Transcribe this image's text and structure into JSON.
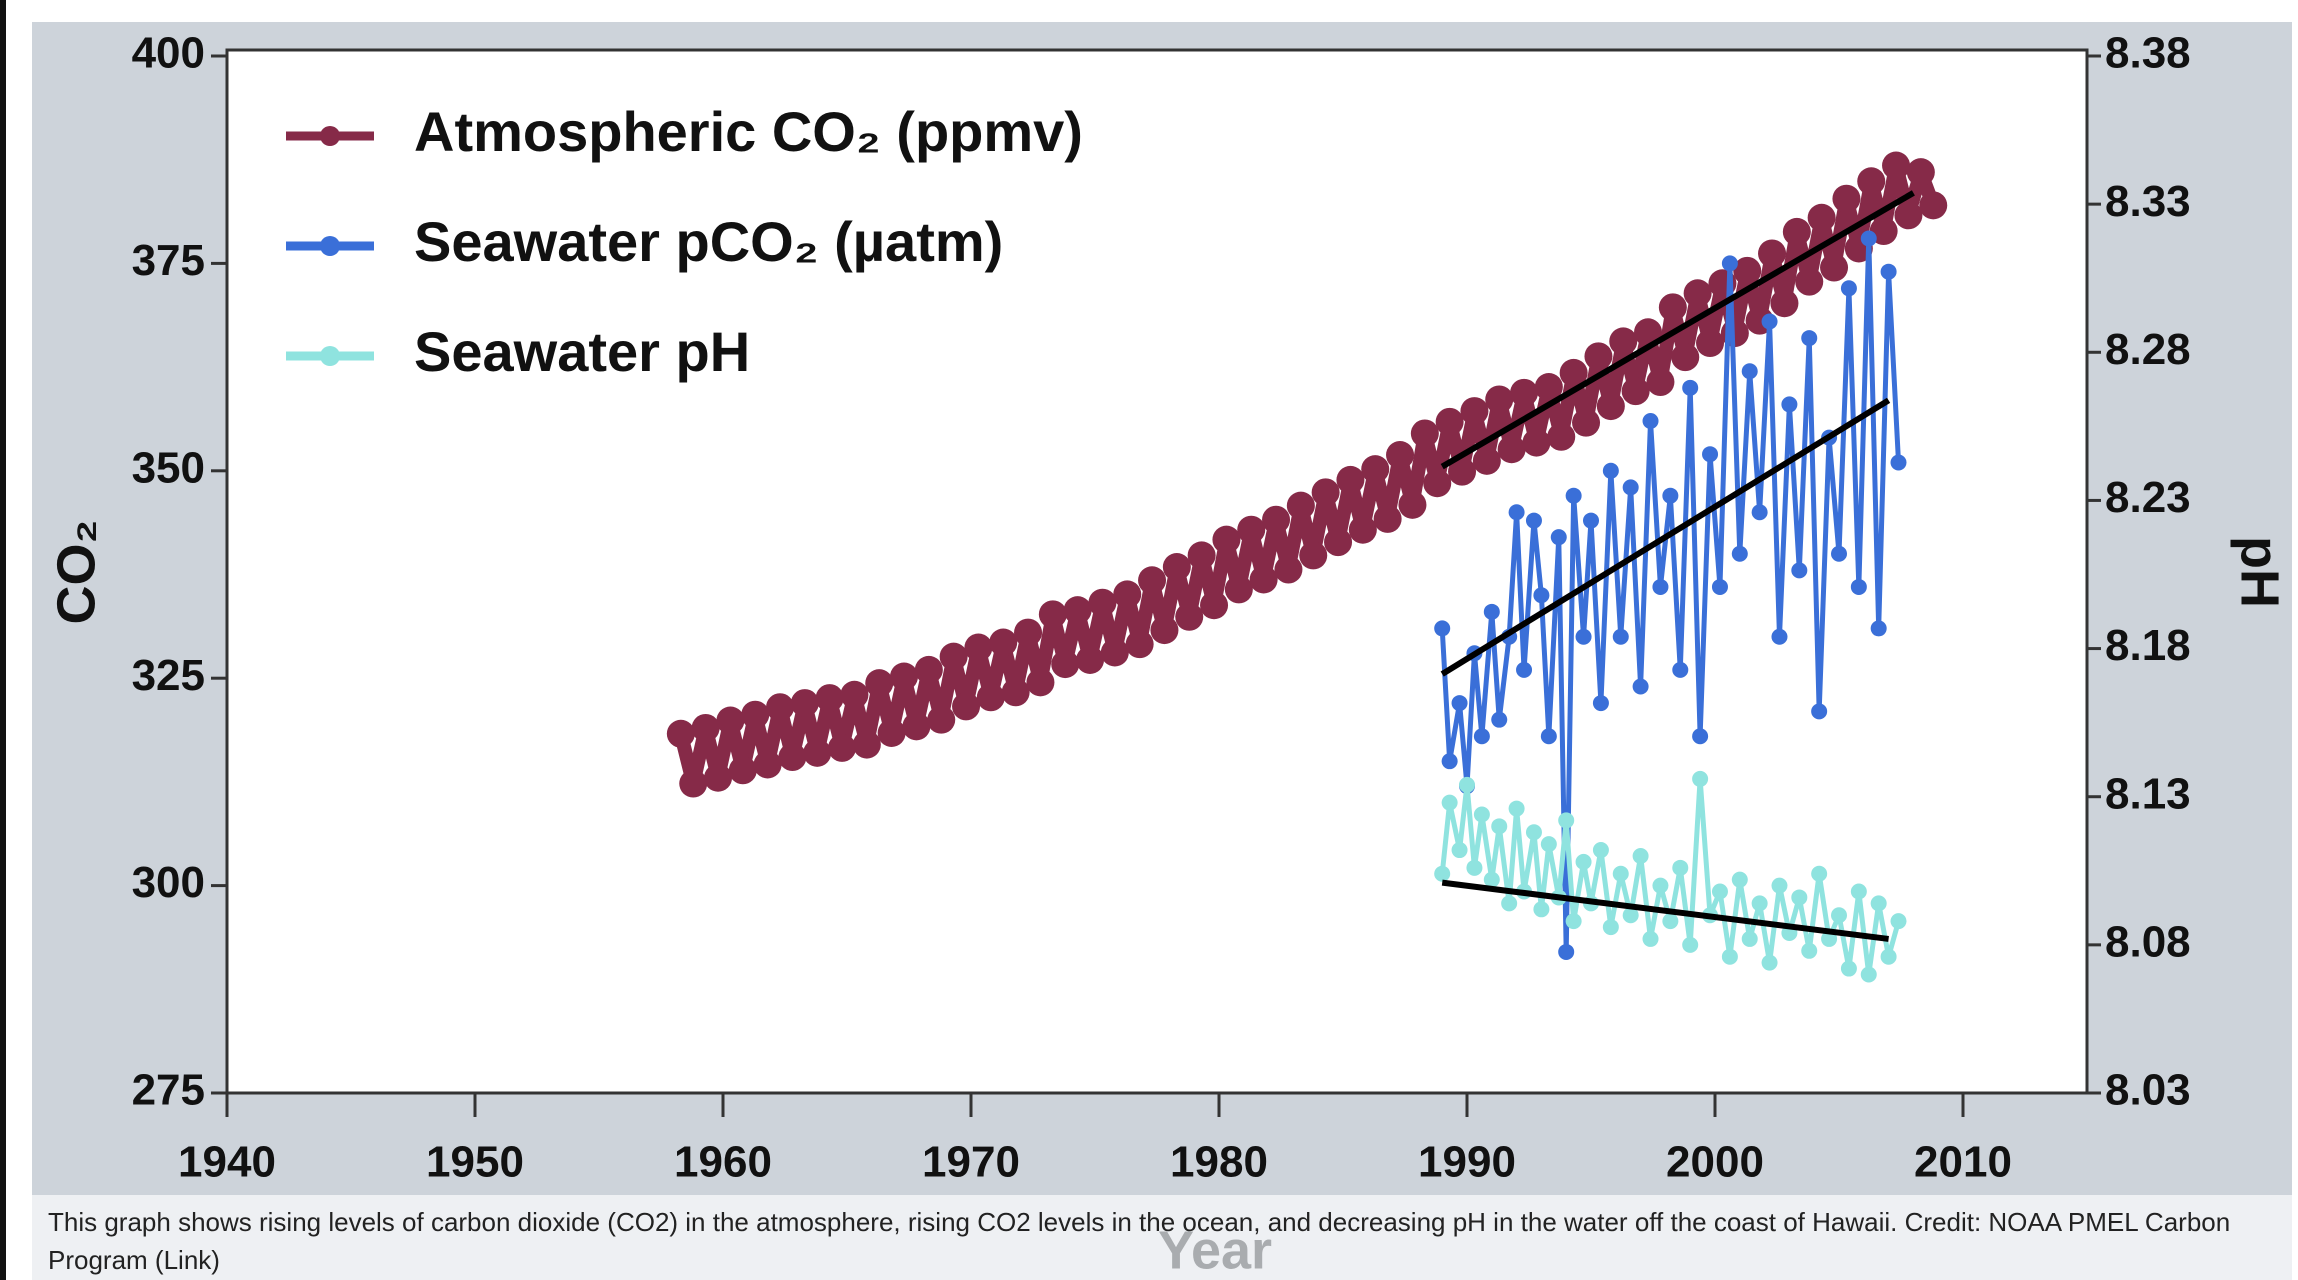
{
  "chart_data": {
    "type": "line",
    "x_label": "Year",
    "y_label": "CO₂",
    "y2_label": "pH",
    "caption": "This graph shows rising levels of carbon dioxide (CO2) in the atmosphere, rising CO2 levels in the ocean, and decreasing pH in the water off the coast of Hawaii. Credit: NOAA PMEL Carbon Program (Link)",
    "xlim": [
      1940,
      2015
    ],
    "xticks": [
      1940,
      1950,
      1960,
      1970,
      1980,
      1990,
      2000,
      2010
    ],
    "ylim": [
      275,
      400
    ],
    "yticks": [
      275,
      300,
      325,
      350,
      375,
      400
    ],
    "y2lim": [
      8.03,
      8.38
    ],
    "y2ticks": [
      8.03,
      8.08,
      8.13,
      8.18,
      8.23,
      8.28,
      8.33,
      8.38
    ],
    "legend": "upper left",
    "series": [
      {
        "name": "Atmospheric CO₂ (ppmv)",
        "color": "#862a48",
        "axis": "y",
        "x": [
          1958.3,
          1958.8,
          1959.3,
          1959.8,
          1960.3,
          1960.8,
          1961.3,
          1961.8,
          1962.3,
          1962.8,
          1963.3,
          1963.8,
          1964.3,
          1964.8,
          1965.3,
          1965.8,
          1966.3,
          1966.8,
          1967.3,
          1967.8,
          1968.3,
          1968.8,
          1969.3,
          1969.8,
          1970.3,
          1970.8,
          1971.3,
          1971.8,
          1972.3,
          1972.8,
          1973.3,
          1973.8,
          1974.3,
          1974.8,
          1975.3,
          1975.8,
          1976.3,
          1976.8,
          1977.3,
          1977.8,
          1978.3,
          1978.8,
          1979.3,
          1979.8,
          1980.3,
          1980.8,
          1981.3,
          1981.8,
          1982.3,
          1982.8,
          1983.3,
          1983.8,
          1984.3,
          1984.8,
          1985.3,
          1985.8,
          1986.3,
          1986.8,
          1987.3,
          1987.8,
          1988.3,
          1988.8,
          1989.3,
          1989.8,
          1990.3,
          1990.8,
          1991.3,
          1991.8,
          1992.3,
          1992.8,
          1993.3,
          1993.8,
          1994.3,
          1994.8,
          1995.3,
          1995.8,
          1996.3,
          1996.8,
          1997.3,
          1997.8,
          1998.3,
          1998.8,
          1999.3,
          1999.8,
          2000.3,
          2000.8,
          2001.3,
          2001.8,
          2002.3,
          2002.8,
          2003.3,
          2003.8,
          2004.3,
          2004.8,
          2005.3,
          2005.8,
          2006.3,
          2006.8,
          2007.3,
          2007.8,
          2008.3,
          2008.8
        ],
        "values": [
          318.3,
          312.3,
          319.0,
          313.0,
          319.9,
          313.9,
          320.6,
          314.6,
          321.5,
          315.5,
          322.0,
          316.0,
          322.6,
          316.6,
          323.0,
          317.0,
          324.4,
          318.4,
          325.2,
          319.2,
          326.0,
          320.0,
          327.6,
          321.6,
          328.7,
          322.7,
          329.3,
          323.3,
          330.5,
          324.5,
          332.7,
          326.7,
          333.2,
          327.2,
          334.1,
          328.1,
          335.1,
          329.1,
          336.8,
          330.8,
          338.4,
          332.4,
          339.8,
          333.8,
          341.7,
          335.7,
          342.9,
          336.9,
          344.1,
          338.1,
          345.8,
          339.8,
          347.4,
          341.4,
          348.9,
          342.9,
          350.2,
          344.2,
          351.9,
          345.9,
          354.5,
          348.5,
          355.9,
          349.9,
          357.2,
          351.2,
          358.6,
          352.6,
          359.4,
          353.4,
          360.1,
          354.1,
          361.8,
          355.8,
          363.8,
          357.8,
          365.6,
          359.6,
          366.7,
          360.7,
          369.7,
          363.7,
          371.4,
          365.4,
          372.6,
          366.6,
          374.1,
          368.1,
          376.2,
          370.2,
          378.8,
          372.8,
          380.5,
          374.5,
          382.8,
          376.8,
          384.9,
          378.9,
          386.8,
          380.8,
          386.0,
          382.0
        ]
      },
      {
        "name": "Seawater pCO₂ (µatm)",
        "color": "#3a6fd8",
        "axis": "y",
        "x": [
          1989.0,
          1989.3,
          1989.7,
          1990.0,
          1990.3,
          1990.6,
          1991.0,
          1991.3,
          1991.7,
          1992.0,
          1992.3,
          1992.7,
          1993.0,
          1993.3,
          1993.7,
          1994.0,
          1994.3,
          1994.7,
          1995.0,
          1995.4,
          1995.8,
          1996.2,
          1996.6,
          1997.0,
          1997.4,
          1997.8,
          1998.2,
          1998.6,
          1999.0,
          1999.4,
          1999.8,
          2000.2,
          2000.6,
          2001.0,
          2001.4,
          2001.8,
          2002.2,
          2002.6,
          2003.0,
          2003.4,
          2003.8,
          2004.2,
          2004.6,
          2005.0,
          2005.4,
          2005.8,
          2006.2,
          2006.6,
          2007.0,
          2007.4
        ],
        "values": [
          331,
          315,
          322,
          312,
          328,
          318,
          333,
          320,
          330,
          345,
          326,
          344,
          335,
          318,
          342,
          292,
          347,
          330,
          344,
          322,
          350,
          330,
          348,
          324,
          356,
          336,
          347,
          326,
          360,
          318,
          352,
          336,
          375,
          340,
          362,
          345,
          368,
          330,
          358,
          338,
          366,
          321,
          354,
          340,
          372,
          336,
          378,
          331,
          374,
          351
        ]
      },
      {
        "name": "Seawater pH",
        "color": "#8fe3df",
        "axis": "y2",
        "x": [
          1989.0,
          1989.3,
          1989.7,
          1990.0,
          1990.3,
          1990.6,
          1991.0,
          1991.3,
          1991.7,
          1992.0,
          1992.3,
          1992.7,
          1993.0,
          1993.3,
          1993.7,
          1994.0,
          1994.3,
          1994.7,
          1995.0,
          1995.4,
          1995.8,
          1996.2,
          1996.6,
          1997.0,
          1997.4,
          1997.8,
          1998.2,
          1998.6,
          1999.0,
          1999.4,
          1999.8,
          2000.2,
          2000.6,
          2001.0,
          2001.4,
          2001.8,
          2002.2,
          2002.6,
          2003.0,
          2003.4,
          2003.8,
          2004.2,
          2004.6,
          2005.0,
          2005.4,
          2005.8,
          2006.2,
          2006.6,
          2007.0,
          2007.4
        ],
        "values": [
          8.104,
          8.128,
          8.112,
          8.134,
          8.106,
          8.124,
          8.102,
          8.12,
          8.094,
          8.126,
          8.098,
          8.118,
          8.092,
          8.114,
          8.096,
          8.122,
          8.088,
          8.108,
          8.094,
          8.112,
          8.086,
          8.104,
          8.09,
          8.11,
          8.082,
          8.1,
          8.088,
          8.106,
          8.08,
          8.136,
          8.09,
          8.098,
          8.076,
          8.102,
          8.082,
          8.094,
          8.074,
          8.1,
          8.084,
          8.096,
          8.078,
          8.104,
          8.082,
          8.09,
          8.072,
          8.098,
          8.07,
          8.094,
          8.076,
          8.088
        ]
      }
    ],
    "trend_lines": [
      {
        "color": "#000000",
        "axis": "y",
        "x": [
          1989,
          2008
        ],
        "values": [
          350.5,
          383.5
        ]
      },
      {
        "color": "#000000",
        "axis": "y",
        "x": [
          1989,
          2007
        ],
        "values": [
          325.5,
          358.5
        ]
      },
      {
        "color": "#000000",
        "axis": "y2",
        "x": [
          1989,
          2007
        ],
        "values": [
          8.101,
          8.082
        ]
      }
    ]
  }
}
